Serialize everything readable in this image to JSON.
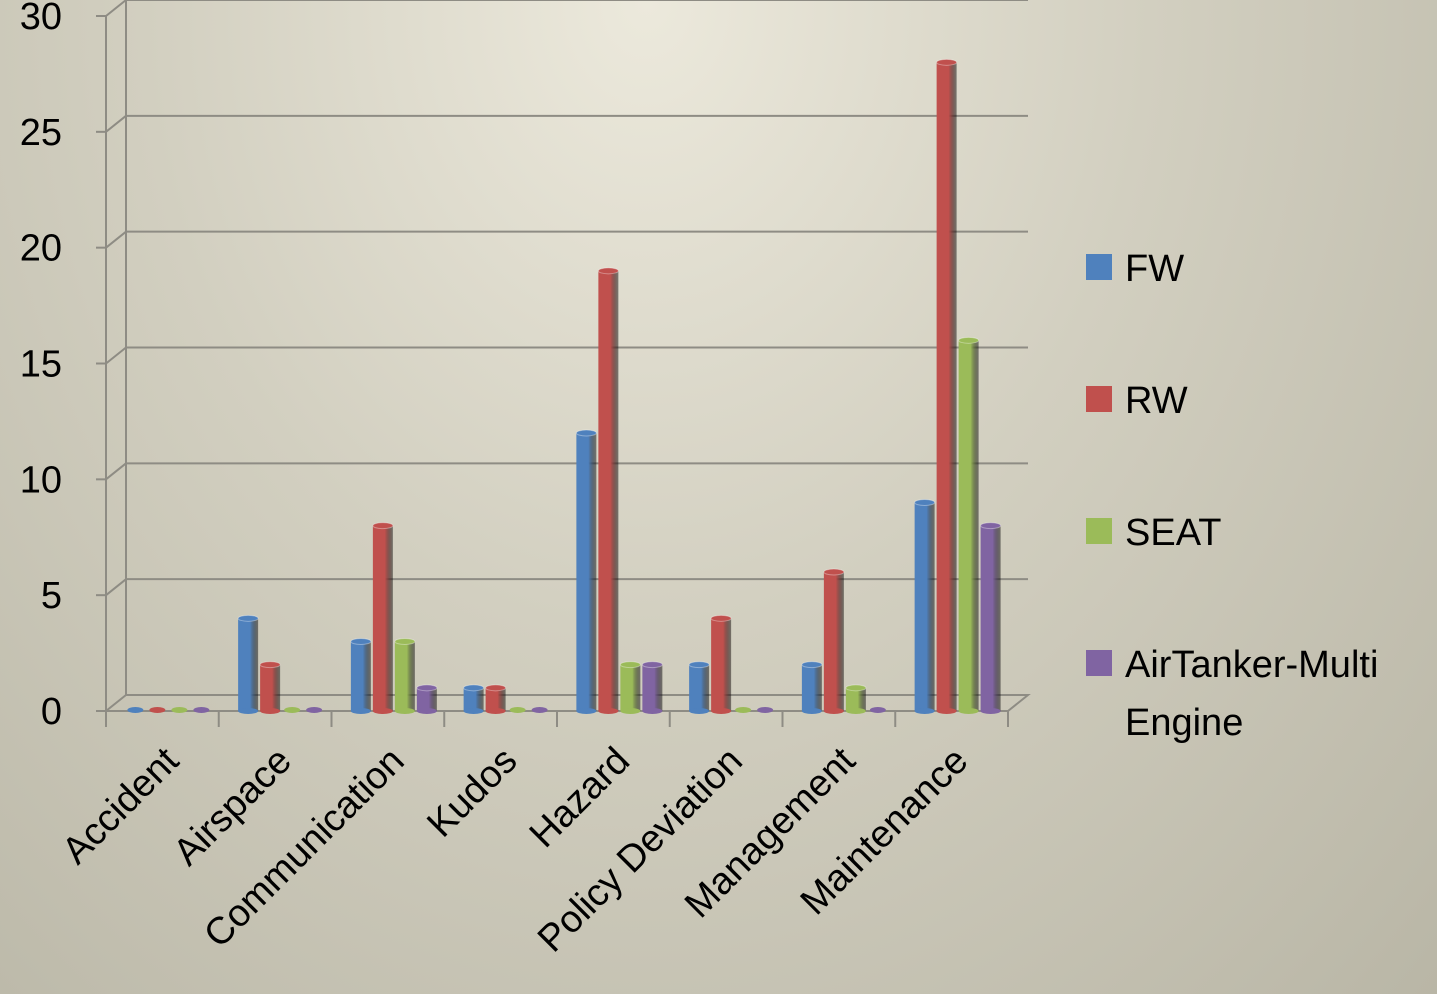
{
  "chart_data": {
    "type": "bar",
    "title": "",
    "xlabel": "",
    "ylabel": "",
    "ylim": [
      0,
      30
    ],
    "yticks": [
      0,
      5,
      10,
      15,
      20,
      25,
      30
    ],
    "grid": true,
    "legend_position": "right",
    "categories": [
      "Accident",
      "Airspace",
      "Communication",
      "Kudos",
      "Hazard",
      "Policy Deviation",
      "Management",
      "Maintenance"
    ],
    "series": [
      {
        "name": "FW",
        "color": "#4f81bd",
        "values": [
          0,
          4,
          3,
          1,
          12,
          2,
          2,
          9
        ]
      },
      {
        "name": "RW",
        "color": "#c0504d",
        "values": [
          0,
          2,
          8,
          1,
          19,
          4,
          6,
          28
        ]
      },
      {
        "name": "SEAT",
        "color": "#9bbb59",
        "values": [
          0,
          0,
          3,
          0,
          2,
          0,
          1,
          16
        ]
      },
      {
        "name": [
          "AirTanker-Multi",
          "Engine"
        ],
        "color": "#8064a2",
        "values": [
          0,
          0,
          1,
          0,
          2,
          0,
          0,
          8
        ]
      }
    ]
  }
}
